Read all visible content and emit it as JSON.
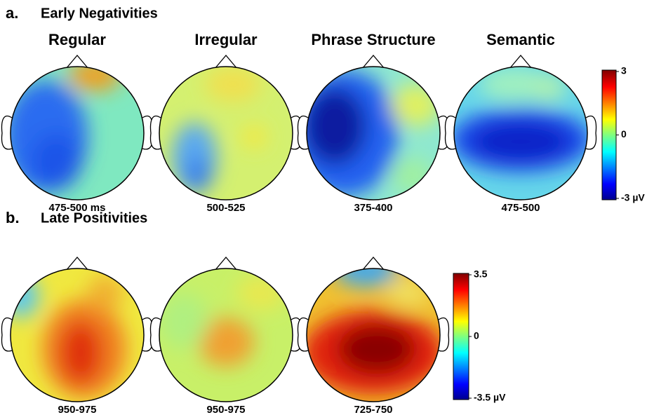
{
  "panels": [
    {
      "letter": "a.",
      "title": "Early Negativities",
      "maps": [
        {
          "title": "Regular",
          "time": "475-500 ms"
        },
        {
          "title": "Irregular",
          "time": "500-525"
        },
        {
          "title": "Phrase Structure",
          "time": "375-400"
        },
        {
          "title": "Semantic",
          "time": "475-500"
        }
      ],
      "colorbar": {
        "max": "3",
        "mid": "0",
        "min": "-3 µV"
      }
    },
    {
      "letter": "b.",
      "title": "Late Positivities",
      "maps": [
        {
          "time": "950-975"
        },
        {
          "time": "950-975"
        },
        {
          "time": "725-750"
        }
      ],
      "colorbar": {
        "max": "3.5",
        "mid": "0",
        "min": "-3.5 µV"
      }
    }
  ]
}
